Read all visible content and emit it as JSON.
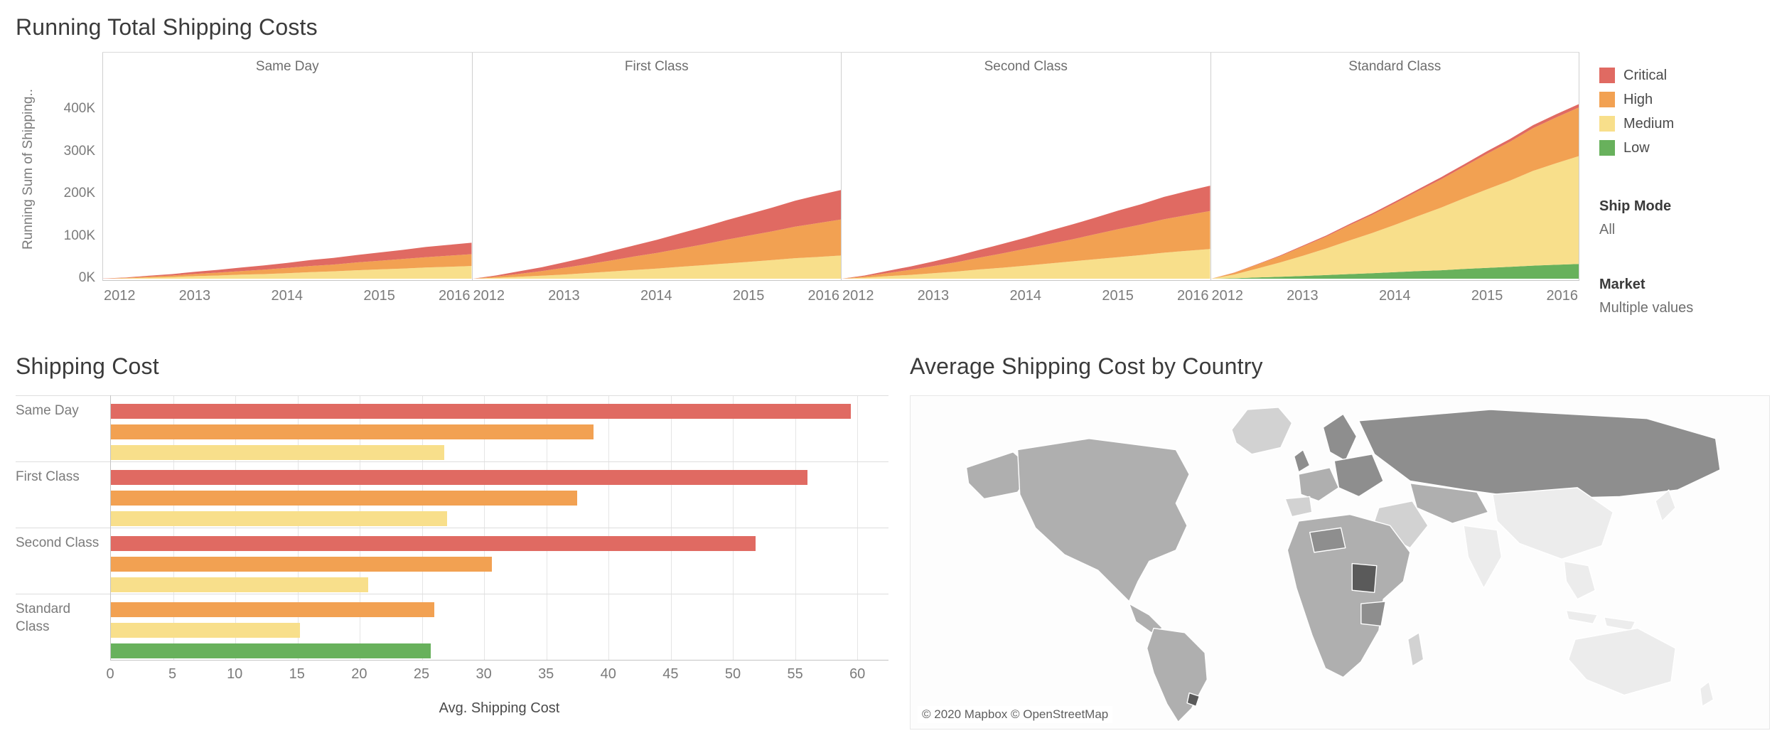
{
  "colors": {
    "critical": "#e06a62",
    "high": "#f2a152",
    "medium": "#f8df8b",
    "low": "#68b15c",
    "axis_text": "#7b7b7b",
    "title_text": "#3b3b3b"
  },
  "running_total": {
    "title": "Running Total Shipping Costs",
    "y_axis_label": "Running Sum of Shipping..",
    "y_ticks": [
      {
        "label": "0K",
        "value": 0
      },
      {
        "label": "100K",
        "value": 100
      },
      {
        "label": "200K",
        "value": 200
      },
      {
        "label": "300K",
        "value": 300
      },
      {
        "label": "400K",
        "value": 400
      }
    ],
    "x_ticks": [
      "2012",
      "2013",
      "2014",
      "2015",
      "2016"
    ]
  },
  "legend": {
    "items": [
      {
        "label": "Critical",
        "color": "#e06a62"
      },
      {
        "label": "High",
        "color": "#f2a152"
      },
      {
        "label": "Medium",
        "color": "#f8df8b"
      },
      {
        "label": "Low",
        "color": "#68b15c"
      }
    ],
    "ship_mode_label": "Ship Mode",
    "ship_mode_value": "All",
    "market_label": "Market",
    "market_value": "Multiple values"
  },
  "shipping_cost": {
    "title": "Shipping Cost",
    "xlabel": "Avg. Shipping Cost"
  },
  "map": {
    "title": "Average Shipping Cost by Country",
    "attribution": "© 2020 Mapbox © OpenStreetMap",
    "palette": {
      "none": "#ececec",
      "low": "#d2d2d2",
      "mid": "#afafaf",
      "high": "#8e8e8e",
      "max": "#5a5a5a"
    }
  },
  "chart_data": [
    {
      "id": "running_total",
      "type": "area",
      "stacked": true,
      "title": "Running Total Shipping Costs",
      "ylabel": "Running Sum of Shipping Cost",
      "unit": "K",
      "ylim": [
        0,
        440
      ],
      "legend_position": "right",
      "grid": false,
      "x": [
        2012,
        2012.25,
        2012.5,
        2012.75,
        2013,
        2013.25,
        2013.5,
        2013.75,
        2014,
        2014.25,
        2014.5,
        2014.75,
        2015,
        2015.25,
        2015.5,
        2015.75,
        2016
      ],
      "stack_order": [
        "Low",
        "Medium",
        "High",
        "Critical"
      ],
      "panels": [
        {
          "name": "Same Day",
          "series": {
            "Low": [
              0,
              0,
              0,
              0,
              0,
              0,
              0,
              0,
              0,
              0,
              0,
              0,
              0,
              0,
              0,
              0,
              0
            ],
            "Medium": [
              0,
              1,
              2.5,
              4,
              6,
              7.5,
              9.5,
              11,
              13,
              15.5,
              17.5,
              20,
              22,
              24,
              26.5,
              28,
              30
            ],
            "High": [
              0,
              1,
              2.5,
              3.5,
              5.5,
              7,
              8.5,
              10.5,
              12.5,
              14.5,
              16,
              18.5,
              20.5,
              22.5,
              24.5,
              26.5,
              28
            ],
            "Critical": [
              0.5,
              1,
              2,
              3.5,
              5,
              6.5,
              8.5,
              10,
              12,
              14,
              15.5,
              17.5,
              19.5,
              21.5,
              24,
              25.5,
              27
            ]
          }
        },
        {
          "name": "First Class",
          "series": {
            "Low": [
              0,
              0,
              0,
              0,
              0,
              0,
              0,
              0,
              0,
              0,
              0,
              0,
              0,
              0,
              0,
              0,
              0
            ],
            "Medium": [
              0,
              2,
              4.5,
              7,
              10,
              13.5,
              17,
              20.5,
              24,
              28,
              32,
              36,
              40,
              44,
              48.5,
              51.5,
              55
            ],
            "High": [
              0,
              3,
              7,
              11,
              16,
              21,
              26,
              32,
              37,
              43,
              49,
              56,
              62,
              68,
              74.5,
              80,
              85
            ],
            "Critical": [
              0,
              2.5,
              6,
              9,
              13,
              17,
              22,
              26,
              31,
              36,
              41,
              46,
              51,
              56,
              61.5,
              66,
              70
            ]
          }
        },
        {
          "name": "Second Class",
          "series": {
            "Low": [
              0,
              0,
              0,
              0,
              0,
              0,
              0,
              0,
              0,
              0,
              0,
              0,
              0,
              0,
              0,
              0,
              0
            ],
            "Medium": [
              0,
              2.5,
              6,
              9,
              13,
              17,
              22,
              26,
              31,
              36,
              41,
              46,
              51,
              56,
              61.5,
              66,
              70
            ],
            "High": [
              0,
              3,
              7.5,
              12,
              17,
              22,
              28,
              34,
              40,
              46,
              52,
              59,
              66,
              72,
              79,
              84.5,
              90
            ],
            "Critical": [
              0,
              2,
              5,
              8,
              11,
              15,
              18.5,
              22.5,
              26,
              31,
              35,
              39,
              44,
              48,
              53,
              56.5,
              60
            ]
          }
        },
        {
          "name": "Standard Class",
          "series": {
            "Low": [
              0,
              1,
              3,
              4.5,
              6.5,
              8.5,
              11,
              13,
              15.5,
              18,
              20,
              23,
              25.5,
              28,
              31,
              33,
              35
            ],
            "Medium": [
              0,
              9,
              21,
              34,
              48,
              63,
              79,
              95,
              112,
              130,
              148,
              167,
              186,
              204,
              224,
              240,
              255
            ],
            "High": [
              0,
              4,
              9.5,
              15,
              22,
              28,
              36,
              43,
              51,
              59,
              67,
              75,
              84,
              92,
              101,
              108,
              115
            ],
            "Critical": [
              0,
              0.5,
              1,
              1.5,
              2,
              2.5,
              3,
              3.5,
              4,
              4.5,
              5,
              5.5,
              6,
              6.5,
              7,
              7.5,
              8
            ]
          }
        }
      ]
    },
    {
      "id": "shipping_cost",
      "type": "bar",
      "orientation": "horizontal",
      "title": "Shipping Cost",
      "xlabel": "Avg. Shipping Cost",
      "xlim": [
        0,
        62.5
      ],
      "x_ticks": [
        0,
        5,
        10,
        15,
        20,
        25,
        30,
        35,
        40,
        45,
        50,
        55,
        60
      ],
      "grid": true,
      "groups": [
        {
          "category": "Same Day",
          "bars": [
            {
              "priority": "Critical",
              "value": 59.5
            },
            {
              "priority": "High",
              "value": 38.8
            },
            {
              "priority": "Medium",
              "value": 26.8
            }
          ]
        },
        {
          "category": "First Class",
          "bars": [
            {
              "priority": "Critical",
              "value": 56.0
            },
            {
              "priority": "High",
              "value": 37.5
            },
            {
              "priority": "Medium",
              "value": 27.0
            }
          ]
        },
        {
          "category": "Second Class",
          "bars": [
            {
              "priority": "Critical",
              "value": 51.8
            },
            {
              "priority": "High",
              "value": 30.6
            },
            {
              "priority": "Medium",
              "value": 20.7
            }
          ]
        },
        {
          "category": "Standard Class",
          "bars": [
            {
              "priority": "High",
              "value": 26.0
            },
            {
              "priority": "Medium",
              "value": 15.2
            },
            {
              "priority": "Low",
              "value": 25.7
            }
          ]
        }
      ]
    }
  ]
}
